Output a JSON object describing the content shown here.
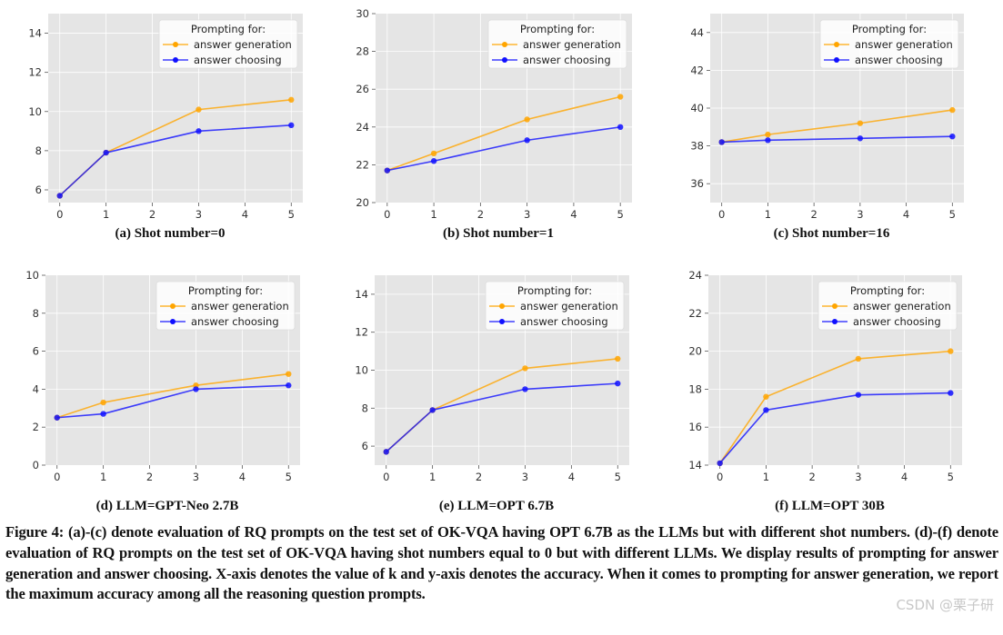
{
  "colors": {
    "answer_generation": "#FFA500",
    "answer_choosing": "#1010FF",
    "plot_background": "#E5E5E5"
  },
  "chart_data": [
    {
      "type": "line",
      "subcaption": "(a) Shot number=0",
      "x": [
        0,
        1,
        3,
        5
      ],
      "xticks": [
        0,
        1,
        2,
        3,
        4,
        5
      ],
      "xlim": [
        -0.25,
        5.25
      ],
      "ylim": [
        5.35,
        15
      ],
      "yticks": [
        6,
        8,
        10,
        12,
        14
      ],
      "grid": true,
      "legend_title": "Prompting for:",
      "legend_position": "top-right",
      "series": [
        {
          "name": "answer generation",
          "values": [
            5.7,
            7.9,
            10.1,
            10.6
          ]
        },
        {
          "name": "answer choosing",
          "values": [
            5.7,
            7.9,
            9.0,
            9.3
          ]
        }
      ]
    },
    {
      "type": "line",
      "subcaption": "(b) Shot number=1",
      "x": [
        0,
        1,
        3,
        5
      ],
      "xticks": [
        0,
        1,
        2,
        3,
        4,
        5
      ],
      "xlim": [
        -0.25,
        5.25
      ],
      "ylim": [
        20,
        30
      ],
      "yticks": [
        20,
        22,
        24,
        26,
        28,
        30
      ],
      "grid": true,
      "legend_title": "Prompting for:",
      "legend_position": "top-right",
      "series": [
        {
          "name": "answer generation",
          "values": [
            21.7,
            22.6,
            24.4,
            25.6
          ]
        },
        {
          "name": "answer choosing",
          "values": [
            21.7,
            22.2,
            23.3,
            24.0
          ]
        }
      ]
    },
    {
      "type": "line",
      "subcaption": "(c) Shot number=16",
      "x": [
        0,
        1,
        3,
        5
      ],
      "xticks": [
        0,
        1,
        2,
        3,
        4,
        5
      ],
      "xlim": [
        -0.25,
        5.25
      ],
      "ylim": [
        35,
        45
      ],
      "yticks": [
        36,
        38,
        40,
        42,
        44
      ],
      "grid": true,
      "legend_title": "Prompting for:",
      "legend_position": "top-right",
      "series": [
        {
          "name": "answer generation",
          "values": [
            38.2,
            38.6,
            39.2,
            39.9
          ]
        },
        {
          "name": "answer choosing",
          "values": [
            38.2,
            38.3,
            38.4,
            38.5
          ]
        }
      ]
    },
    {
      "type": "line",
      "subcaption": "(d) LLM=GPT-Neo 2.7B",
      "x": [
        0,
        1,
        3,
        5
      ],
      "xticks": [
        0,
        1,
        2,
        3,
        4,
        5
      ],
      "xlim": [
        -0.25,
        5.25
      ],
      "ylim": [
        0,
        10
      ],
      "yticks": [
        0,
        2,
        4,
        6,
        8,
        10
      ],
      "grid": true,
      "legend_title": "Prompting for:",
      "legend_position": "top-right",
      "series": [
        {
          "name": "answer generation",
          "values": [
            2.5,
            3.3,
            4.2,
            4.8
          ]
        },
        {
          "name": "answer choosing",
          "values": [
            2.5,
            2.7,
            4.0,
            4.2
          ]
        }
      ]
    },
    {
      "type": "line",
      "subcaption": "(e) LLM=OPT 6.7B",
      "x": [
        0,
        1,
        3,
        5
      ],
      "xticks": [
        0,
        1,
        2,
        3,
        4,
        5
      ],
      "xlim": [
        -0.25,
        5.25
      ],
      "ylim": [
        5.0,
        15
      ],
      "yticks": [
        6,
        8,
        10,
        12,
        14
      ],
      "grid": true,
      "legend_title": "Prompting for:",
      "legend_position": "top-right",
      "series": [
        {
          "name": "answer generation",
          "values": [
            5.7,
            7.9,
            10.1,
            10.6
          ]
        },
        {
          "name": "answer choosing",
          "values": [
            5.7,
            7.9,
            9.0,
            9.3
          ]
        }
      ]
    },
    {
      "type": "line",
      "subcaption": "(f) LLM=OPT 30B",
      "x": [
        0,
        1,
        3,
        5
      ],
      "xticks": [
        0,
        1,
        2,
        3,
        4,
        5
      ],
      "xlim": [
        -0.25,
        5.25
      ],
      "ylim": [
        14,
        24
      ],
      "yticks": [
        14,
        16,
        18,
        20,
        22,
        24
      ],
      "grid": true,
      "legend_title": "Prompting for:",
      "legend_position": "top-right",
      "series": [
        {
          "name": "answer generation",
          "values": [
            14.1,
            17.6,
            19.6,
            20.0
          ]
        },
        {
          "name": "answer choosing",
          "values": [
            14.1,
            16.9,
            17.7,
            17.8
          ]
        }
      ]
    }
  ],
  "caption": {
    "label": "Figure 4:",
    "text": "(a)-(c) denote evaluation of RQ prompts on the test set of OK-VQA having OPT 6.7B as the LLMs but with different shot numbers. (d)-(f) denote evaluation of RQ prompts on the test set of OK-VQA having shot numbers equal to 0 but with different LLMs. We display results of prompting for answer generation and answer choosing. X-axis denotes the value of k and y-axis denotes the accuracy. When it comes to prompting for answer generation, we report the maximum accuracy among all the reasoning question prompts."
  },
  "watermark": "CSDN @栗子研"
}
